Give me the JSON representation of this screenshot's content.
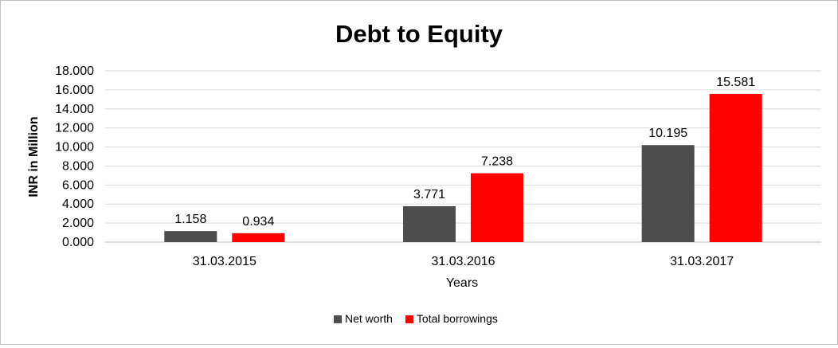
{
  "chart_data": {
    "type": "bar",
    "title": "Debt to Equity",
    "xlabel": "Years",
    "ylabel": "INR in Million",
    "categories": [
      "31.03.2015",
      "31.03.2016",
      "31.03.2017"
    ],
    "series": [
      {
        "name": "Net worth",
        "values": [
          1.158,
          3.771,
          10.195
        ],
        "labels": [
          "1.158",
          "3.771",
          "10.195"
        ],
        "color": "#4d4d4d"
      },
      {
        "name": "Total borrowings",
        "values": [
          0.934,
          7.238,
          15.581
        ],
        "labels": [
          "0.934",
          "7.238",
          "15.581"
        ],
        "color": "#ff0000"
      }
    ],
    "ylim": [
      0,
      18
    ],
    "yticks": [
      "0.000",
      "2.000",
      "4.000",
      "6.000",
      "8.000",
      "10.000",
      "12.000",
      "14.000",
      "16.000",
      "18.000"
    ],
    "grid": true,
    "legend_position": "bottom"
  }
}
